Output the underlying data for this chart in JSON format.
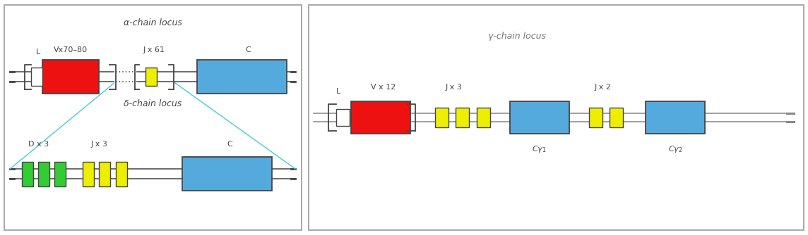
{
  "fig_width": 11.44,
  "fig_height": 3.34,
  "dpi": 100,
  "bg_color": "#ffffff",
  "panel_border_color": "#999999",
  "line_color": "#444444",
  "cyan_color": "#44ccdd",
  "red_color": "#ee1111",
  "blue_color": "#55aadd",
  "green_color": "#33cc33",
  "yellow_color": "#eeee00",
  "white_color": "#ffffff",
  "left_panel_title": "α-chain locus",
  "delta_label": "δ-chain locus",
  "right_panel_title": "γ-chain locus",
  "Cy1_label": "Cγ₁",
  "Cy2_label": "Cγ₂"
}
